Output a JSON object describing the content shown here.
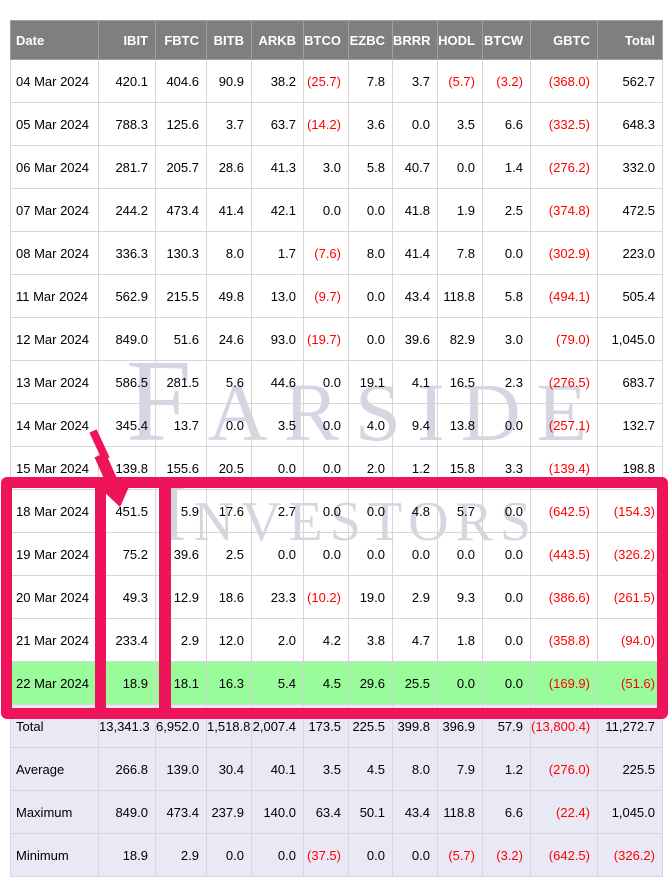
{
  "colors": {
    "header_bg": "#7f7f7f",
    "header_text": "#ffffff",
    "negative_value": "#ff0000",
    "body_text": "#000000",
    "grid_line": "#d6d6d6",
    "highlight_row_bg": "#99fb99",
    "summary_row_bg": "#e9e9f5",
    "annotation_pink": "#ed1459",
    "watermark": "#aab1c4"
  },
  "watermark": {
    "line1": "Farside",
    "line2": "Investors"
  },
  "table": {
    "columns": [
      "Date",
      "IBIT",
      "FBTC",
      "BITB",
      "ARKB",
      "BTCO",
      "EZBC",
      "BRRR",
      "HODL",
      "BTCW",
      "GBTC",
      "Total"
    ],
    "rows": [
      {
        "date": "04 Mar 2024",
        "values": [
          "420.1",
          "404.6",
          "90.9",
          "38.2",
          "(25.7)",
          "7.8",
          "3.7",
          "(5.7)",
          "(3.2)",
          "(368.0)",
          "562.7"
        ]
      },
      {
        "date": "05 Mar 2024",
        "values": [
          "788.3",
          "125.6",
          "3.7",
          "63.7",
          "(14.2)",
          "3.6",
          "0.0",
          "3.5",
          "6.6",
          "(332.5)",
          "648.3"
        ]
      },
      {
        "date": "06 Mar 2024",
        "values": [
          "281.7",
          "205.7",
          "28.6",
          "41.3",
          "3.0",
          "5.8",
          "40.7",
          "0.0",
          "1.4",
          "(276.2)",
          "332.0"
        ]
      },
      {
        "date": "07 Mar 2024",
        "values": [
          "244.2",
          "473.4",
          "41.4",
          "42.1",
          "0.0",
          "0.0",
          "41.8",
          "1.9",
          "2.5",
          "(374.8)",
          "472.5"
        ]
      },
      {
        "date": "08 Mar 2024",
        "values": [
          "336.3",
          "130.3",
          "8.0",
          "1.7",
          "(7.6)",
          "8.0",
          "41.4",
          "7.8",
          "0.0",
          "(302.9)",
          "223.0"
        ]
      },
      {
        "date": "11 Mar 2024",
        "values": [
          "562.9",
          "215.5",
          "49.8",
          "13.0",
          "(9.7)",
          "0.0",
          "43.4",
          "118.8",
          "5.8",
          "(494.1)",
          "505.4"
        ]
      },
      {
        "date": "12 Mar 2024",
        "values": [
          "849.0",
          "51.6",
          "24.6",
          "93.0",
          "(19.7)",
          "0.0",
          "39.6",
          "82.9",
          "3.0",
          "(79.0)",
          "1,045.0"
        ]
      },
      {
        "date": "13 Mar 2024",
        "values": [
          "586.5",
          "281.5",
          "5.6",
          "44.6",
          "0.0",
          "19.1",
          "4.1",
          "16.5",
          "2.3",
          "(276.5)",
          "683.7"
        ]
      },
      {
        "date": "14 Mar 2024",
        "values": [
          "345.4",
          "13.7",
          "0.0",
          "3.5",
          "0.0",
          "4.0",
          "9.4",
          "13.8",
          "0.0",
          "(257.1)",
          "132.7"
        ]
      },
      {
        "date": "15 Mar 2024",
        "values": [
          "139.8",
          "155.6",
          "20.5",
          "0.0",
          "0.0",
          "2.0",
          "1.2",
          "15.8",
          "3.3",
          "(139.4)",
          "198.8"
        ]
      },
      {
        "date": "18 Mar 2024",
        "values": [
          "451.5",
          "5.9",
          "17.6",
          "2.7",
          "0.0",
          "0.0",
          "4.8",
          "5.7",
          "0.0",
          "(642.5)",
          "(154.3)"
        ]
      },
      {
        "date": "19 Mar 2024",
        "values": [
          "75.2",
          "39.6",
          "2.5",
          "0.0",
          "0.0",
          "0.0",
          "0.0",
          "0.0",
          "0.0",
          "(443.5)",
          "(326.2)"
        ]
      },
      {
        "date": "20 Mar 2024",
        "values": [
          "49.3",
          "12.9",
          "18.6",
          "23.3",
          "(10.2)",
          "19.0",
          "2.9",
          "9.3",
          "0.0",
          "(386.6)",
          "(261.5)"
        ]
      },
      {
        "date": "21 Mar 2024",
        "values": [
          "233.4",
          "2.9",
          "12.0",
          "2.0",
          "4.2",
          "3.8",
          "4.7",
          "1.8",
          "0.0",
          "(358.8)",
          "(94.0)"
        ]
      },
      {
        "date": "22 Mar 2024",
        "highlight": true,
        "values": [
          "18.9",
          "18.1",
          "16.3",
          "5.4",
          "4.5",
          "29.6",
          "25.5",
          "0.0",
          "0.0",
          "(169.9)",
          "(51.6)"
        ]
      }
    ],
    "summary_rows": [
      {
        "label": "Total",
        "values": [
          "13,341.3",
          "6,952.0",
          "1,518.8",
          "2,007.4",
          "173.5",
          "225.5",
          "399.8",
          "396.9",
          "57.9",
          "(13,800.4)",
          "11,272.7"
        ]
      },
      {
        "label": "Average",
        "values": [
          "266.8",
          "139.0",
          "30.4",
          "40.1",
          "3.5",
          "4.5",
          "8.0",
          "7.9",
          "1.2",
          "(276.0)",
          "225.5"
        ]
      },
      {
        "label": "Maximum",
        "values": [
          "849.0",
          "473.4",
          "237.9",
          "140.0",
          "63.4",
          "50.1",
          "43.4",
          "118.8",
          "6.6",
          "(22.4)",
          "1,045.0"
        ]
      },
      {
        "label": "Minimum",
        "values": [
          "18.9",
          "2.9",
          "0.0",
          "0.0",
          "(37.5)",
          "0.0",
          "0.0",
          "(5.7)",
          "(3.2)",
          "(642.5)",
          "(326.2)"
        ]
      }
    ]
  }
}
